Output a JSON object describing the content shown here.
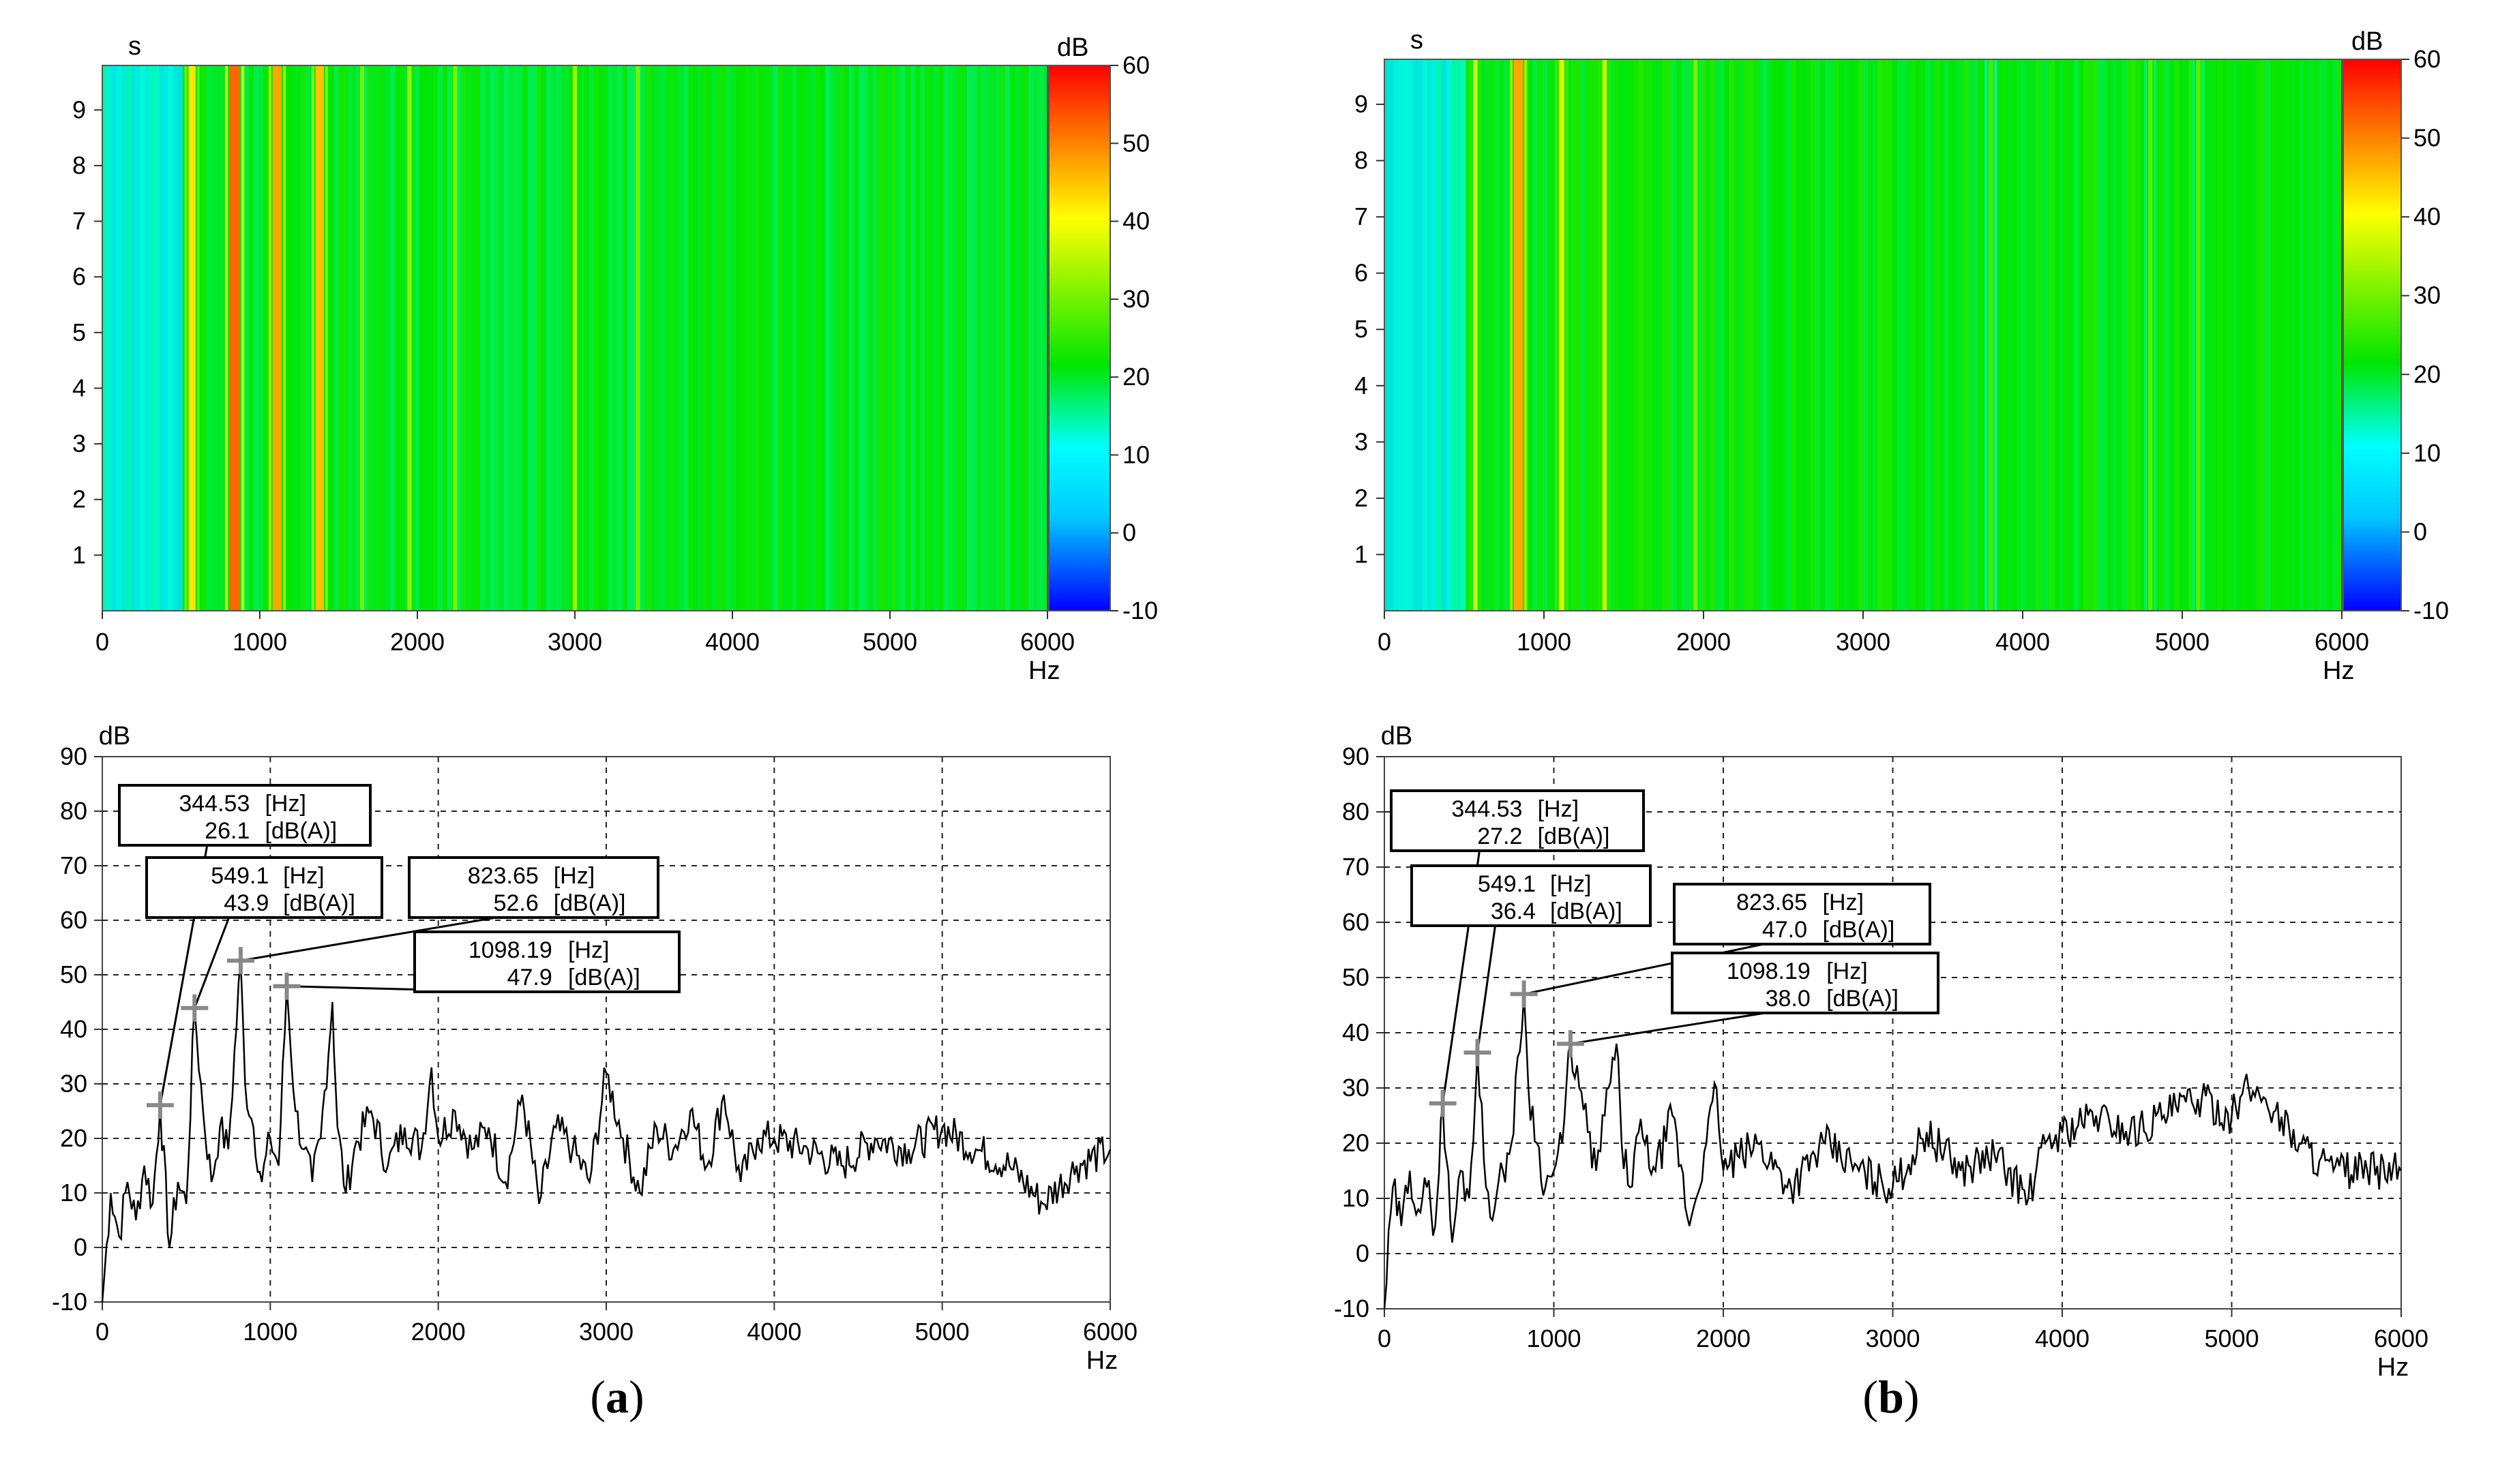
{
  "figure": {
    "panels": [
      {
        "id": "a",
        "caption": "a",
        "spectrogram": {
          "ylabel": "s",
          "xlabel": "Hz",
          "colorbar_label": "dB",
          "x_ticks": [
            "0",
            "1000",
            "2000",
            "3000",
            "4000",
            "5000",
            "6000"
          ],
          "y_ticks": [
            "1",
            "2",
            "3",
            "4",
            "5",
            "6",
            "7",
            "8",
            "9"
          ],
          "colorbar_ticks": [
            "60",
            "50",
            "40",
            "30",
            "20",
            "10",
            "0",
            "-10"
          ]
        },
        "spectrum": {
          "ylabel": "dB",
          "xlabel": "Hz",
          "x_ticks": [
            "0",
            "1000",
            "2000",
            "3000",
            "4000",
            "5000",
            "6000"
          ],
          "y_ticks": [
            "90",
            "80",
            "70",
            "60",
            "50",
            "40",
            "30",
            "20",
            "10",
            "0",
            "-10"
          ],
          "annotations": [
            {
              "freq": "344.53",
              "freq_unit": "[Hz]",
              "level": "26.1",
              "level_unit": "[dB(A)]"
            },
            {
              "freq": "549.1",
              "freq_unit": "[Hz]",
              "level": "43.9",
              "level_unit": "[dB(A)]"
            },
            {
              "freq": "823.65",
              "freq_unit": "[Hz]",
              "level": "52.6",
              "level_unit": "[dB(A)]"
            },
            {
              "freq": "1098.19",
              "freq_unit": "[Hz]",
              "level": "47.9",
              "level_unit": "[dB(A)]"
            }
          ]
        }
      },
      {
        "id": "b",
        "caption": "b",
        "spectrogram": {
          "ylabel": "s",
          "xlabel": "Hz",
          "colorbar_label": "dB",
          "x_ticks": [
            "0",
            "1000",
            "2000",
            "3000",
            "4000",
            "5000",
            "6000"
          ],
          "y_ticks": [
            "1",
            "2",
            "3",
            "4",
            "5",
            "6",
            "7",
            "8",
            "9"
          ],
          "colorbar_ticks": [
            "60",
            "50",
            "40",
            "30",
            "20",
            "10",
            "0",
            "-10"
          ]
        },
        "spectrum": {
          "ylabel": "dB",
          "xlabel": "Hz",
          "x_ticks": [
            "0",
            "1000",
            "2000",
            "3000",
            "4000",
            "5000",
            "6000"
          ],
          "y_ticks": [
            "90",
            "80",
            "70",
            "60",
            "50",
            "40",
            "30",
            "20",
            "10",
            "0",
            "-10"
          ],
          "annotations": [
            {
              "freq": "344.53",
              "freq_unit": "[Hz]",
              "level": "27.2",
              "level_unit": "[dB(A)]"
            },
            {
              "freq": "549.1",
              "freq_unit": "[Hz]",
              "level": "36.4",
              "level_unit": "[dB(A)]"
            },
            {
              "freq": "823.65",
              "freq_unit": "[Hz]",
              "level": "47.0",
              "level_unit": "[dB(A)]"
            },
            {
              "freq": "1098.19",
              "freq_unit": "[Hz]",
              "level": "38.0",
              "level_unit": "[dB(A)]"
            }
          ]
        }
      }
    ]
  },
  "chart_data": [
    {
      "type": "heatmap",
      "panel": "a",
      "xlabel": "Hz",
      "ylabel": "s",
      "colorbar_label": "dB",
      "xlim": [
        0,
        6000
      ],
      "ylim": [
        0,
        9.8
      ],
      "clim": [
        -10,
        60
      ],
      "colormap": [
        "#0000ff",
        "#00c8ff",
        "#00ffff",
        "#00e600",
        "#ffff00",
        "#ff8000",
        "#ff0000"
      ],
      "base_level_dB": 20,
      "line_frequencies_hz": [
        570,
        840,
        1110,
        1380,
        1650,
        1950,
        2240,
        3000,
        3400
      ],
      "line_levels_dB": [
        42,
        52,
        47,
        45,
        30,
        32,
        30,
        33,
        30
      ],
      "low_freq_band_hz": [
        0,
        500
      ],
      "low_freq_band_level_dB": 8
    },
    {
      "type": "line",
      "panel": "a",
      "xlabel": "Hz",
      "ylabel": "dB",
      "xlim": [
        0,
        6000
      ],
      "ylim": [
        -10,
        90
      ],
      "grid": true,
      "peaks": [
        {
          "x": 344.53,
          "y": 26.1
        },
        {
          "x": 549.1,
          "y": 43.9
        },
        {
          "x": 823.65,
          "y": 52.6
        },
        {
          "x": 1098.19,
          "y": 47.9
        }
      ],
      "series": [
        {
          "x": [
            0,
            50,
            100,
            150,
            200,
            250,
            300,
            344.53,
            400,
            450,
            500,
            549.1,
            600,
            650,
            700,
            750,
            823.65,
            850,
            900,
            950,
            1000,
            1050,
            1098.19,
            1150,
            1200,
            1250,
            1300,
            1370,
            1400,
            1450,
            1500,
            1600,
            1700,
            1800,
            1900,
            1960,
            2000,
            2100,
            2200,
            2300,
            2400,
            2500,
            2600,
            2700,
            2800,
            2900,
            3000,
            3100,
            3200,
            3300,
            3400,
            3500,
            3600,
            3700,
            3800,
            3900,
            4000,
            4200,
            4400,
            4600,
            4800,
            5000,
            5200,
            5400,
            5600,
            5800,
            6000
          ],
          "y": [
            -10,
            10,
            2,
            12,
            5,
            15,
            8,
            26.1,
            0,
            12,
            8,
            43.9,
            25,
            12,
            22,
            18,
            52.6,
            30,
            22,
            12,
            20,
            15,
            47.9,
            25,
            18,
            12,
            20,
            45,
            22,
            10,
            18,
            25,
            15,
            22,
            18,
            33,
            20,
            25,
            18,
            22,
            12,
            28,
            8,
            22,
            18,
            12,
            32,
            20,
            10,
            22,
            18,
            25,
            15,
            28,
            12,
            20,
            20,
            18,
            15,
            20,
            18,
            22,
            18,
            15,
            8,
            15,
            18
          ]
        }
      ]
    },
    {
      "type": "heatmap",
      "panel": "b",
      "xlabel": "Hz",
      "ylabel": "s",
      "colorbar_label": "dB",
      "xlim": [
        0,
        6000
      ],
      "ylim": [
        0,
        9.8
      ],
      "clim": [
        -10,
        60
      ],
      "colormap": [
        "#0000ff",
        "#00c8ff",
        "#00ffff",
        "#00e600",
        "#ffff00",
        "#ff8000",
        "#ff0000"
      ],
      "base_level_dB": 21,
      "line_frequencies_hz": [
        570,
        840,
        1110,
        1380,
        1950,
        3800,
        4800,
        5100
      ],
      "line_levels_dB": [
        36,
        47,
        38,
        36,
        30,
        26,
        28,
        28
      ],
      "low_freq_band_hz": [
        0,
        500
      ],
      "low_freq_band_level_dB": 8
    },
    {
      "type": "line",
      "panel": "b",
      "xlabel": "Hz",
      "ylabel": "dB",
      "xlim": [
        0,
        6000
      ],
      "ylim": [
        -10,
        90
      ],
      "grid": true,
      "peaks": [
        {
          "x": 344.53,
          "y": 27.2
        },
        {
          "x": 549.1,
          "y": 36.4
        },
        {
          "x": 823.65,
          "y": 47.0
        },
        {
          "x": 1098.19,
          "y": 38.0
        }
      ],
      "series": [
        {
          "x": [
            0,
            50,
            100,
            150,
            200,
            250,
            300,
            344.53,
            400,
            450,
            500,
            549.1,
            600,
            650,
            700,
            750,
            823.65,
            850,
            900,
            950,
            1000,
            1050,
            1098.19,
            1150,
            1200,
            1250,
            1300,
            1370,
            1400,
            1450,
            1500,
            1600,
            1700,
            1800,
            1900,
            1960,
            2000,
            2200,
            2400,
            2600,
            2800,
            3000,
            3200,
            3400,
            3600,
            3800,
            3900,
            4000,
            4200,
            4400,
            4600,
            4800,
            5000,
            5100,
            5200,
            5400,
            5600,
            5800,
            6000
          ],
          "y": [
            -10,
            12,
            5,
            15,
            8,
            12,
            5,
            27.2,
            2,
            15,
            10,
            36.4,
            12,
            8,
            15,
            20,
            47.0,
            30,
            20,
            12,
            15,
            20,
            38.0,
            30,
            22,
            15,
            25,
            38,
            20,
            12,
            22,
            15,
            25,
            5,
            20,
            30,
            15,
            20,
            12,
            20,
            15,
            12,
            22,
            15,
            18,
            10,
            20,
            22,
            25,
            22,
            25,
            28,
            25,
            30,
            28,
            20,
            15,
            15,
            15
          ]
        }
      ]
    }
  ]
}
